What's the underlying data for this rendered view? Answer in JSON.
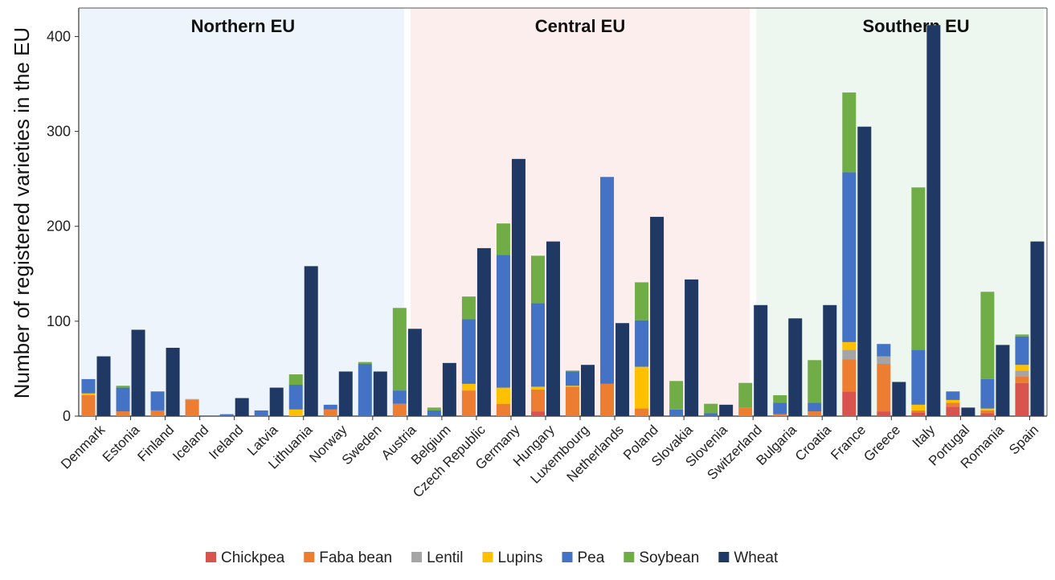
{
  "chart_data": {
    "type": "bar",
    "title": "",
    "ylabel": "Number of registered varieties in the EU",
    "xlabel": "",
    "ylim": [
      0,
      430
    ],
    "yticks": [
      0,
      100,
      200,
      300,
      400
    ],
    "grid": false,
    "legend_position": "bottom",
    "stack_series": [
      "Chickpea",
      "Faba bean",
      "Lentil",
      "Lupins",
      "Pea",
      "Soybean"
    ],
    "separate_series": "Wheat",
    "series_colors": {
      "Chickpea": "#d9534f",
      "Faba bean": "#ed7d31",
      "Lentil": "#a5a5a5",
      "Lupins": "#ffc000",
      "Pea": "#4472c4",
      "Soybean": "#70ad47",
      "Wheat": "#1f3864"
    },
    "regions": [
      {
        "name": "Northern EU",
        "start": 0,
        "end": 8,
        "color": "#eef4fb"
      },
      {
        "name": "Central EU",
        "start": 9,
        "end": 18,
        "color": "#fdeeee"
      },
      {
        "name": "Southern EU",
        "start": 19,
        "end": 26,
        "color": "#eef7ef"
      }
    ],
    "categories": [
      "Denmark",
      "Estonia",
      "Finland",
      "Iceland",
      "Ireland",
      "Latvia",
      "Lithuania",
      "Norway",
      "Sweden",
      "Austria",
      "Belgium",
      "Czech Republic",
      "Germany",
      "Hungary",
      "Luxembourg",
      "Netherlands",
      "Poland",
      "Slovakia",
      "Slovenia",
      "Switzerland",
      "Bulgaria",
      "Croatia",
      "France",
      "Greece",
      "Italy",
      "Portugal",
      "Romania",
      "Spain"
    ],
    "series": [
      {
        "name": "Chickpea",
        "values": [
          0,
          0,
          0,
          0,
          0,
          0,
          0,
          0,
          0,
          0,
          0,
          0,
          0,
          5,
          0,
          0,
          0,
          0,
          0,
          0,
          0,
          0,
          26,
          5,
          4,
          10,
          3,
          35
        ]
      },
      {
        "name": "Faba bean",
        "values": [
          22,
          5,
          6,
          17,
          0,
          0,
          0,
          7,
          0,
          13,
          0,
          27,
          13,
          23,
          31,
          34,
          8,
          0,
          0,
          9,
          2,
          5,
          34,
          50,
          2,
          4,
          3,
          7
        ]
      },
      {
        "name": "Lentil",
        "values": [
          0,
          0,
          0,
          1,
          0,
          0,
          0,
          0,
          0,
          0,
          0,
          0,
          0,
          0,
          0,
          0,
          0,
          0,
          0,
          0,
          0,
          0,
          10,
          8,
          0,
          0,
          0,
          6
        ]
      },
      {
        "name": "Lupins",
        "values": [
          2,
          0,
          0,
          0,
          0,
          0,
          7,
          0,
          0,
          0,
          0,
          7,
          17,
          3,
          1,
          0,
          44,
          0,
          0,
          0,
          0,
          0,
          8,
          0,
          6,
          3,
          2,
          6
        ]
      },
      {
        "name": "Pea",
        "values": [
          15,
          25,
          20,
          0,
          2,
          6,
          26,
          5,
          55,
          14,
          6,
          68,
          140,
          88,
          15,
          218,
          49,
          7,
          3,
          0,
          12,
          9,
          179,
          13,
          58,
          9,
          31,
          30
        ]
      },
      {
        "name": "Soybean",
        "values": [
          0,
          2,
          0,
          0,
          0,
          0,
          11,
          0,
          2,
          87,
          3,
          24,
          33,
          50,
          1,
          0,
          40,
          30,
          10,
          26,
          8,
          45,
          84,
          0,
          171,
          0,
          92,
          2
        ]
      },
      {
        "name": "Wheat",
        "values": [
          63,
          91,
          72,
          0,
          19,
          30,
          158,
          47,
          47,
          92,
          56,
          177,
          271,
          184,
          54,
          98,
          210,
          144,
          12,
          117,
          103,
          117,
          305,
          36,
          412,
          9,
          75,
          184
        ]
      }
    ]
  },
  "legend": [
    {
      "label": "Chickpea",
      "color": "#d9534f"
    },
    {
      "label": "Faba bean",
      "color": "#ed7d31"
    },
    {
      "label": "Lentil",
      "color": "#a5a5a5"
    },
    {
      "label": "Lupins",
      "color": "#ffc000"
    },
    {
      "label": "Pea",
      "color": "#4472c4"
    },
    {
      "label": "Soybean",
      "color": "#70ad47"
    },
    {
      "label": "Wheat",
      "color": "#1f3864"
    }
  ]
}
